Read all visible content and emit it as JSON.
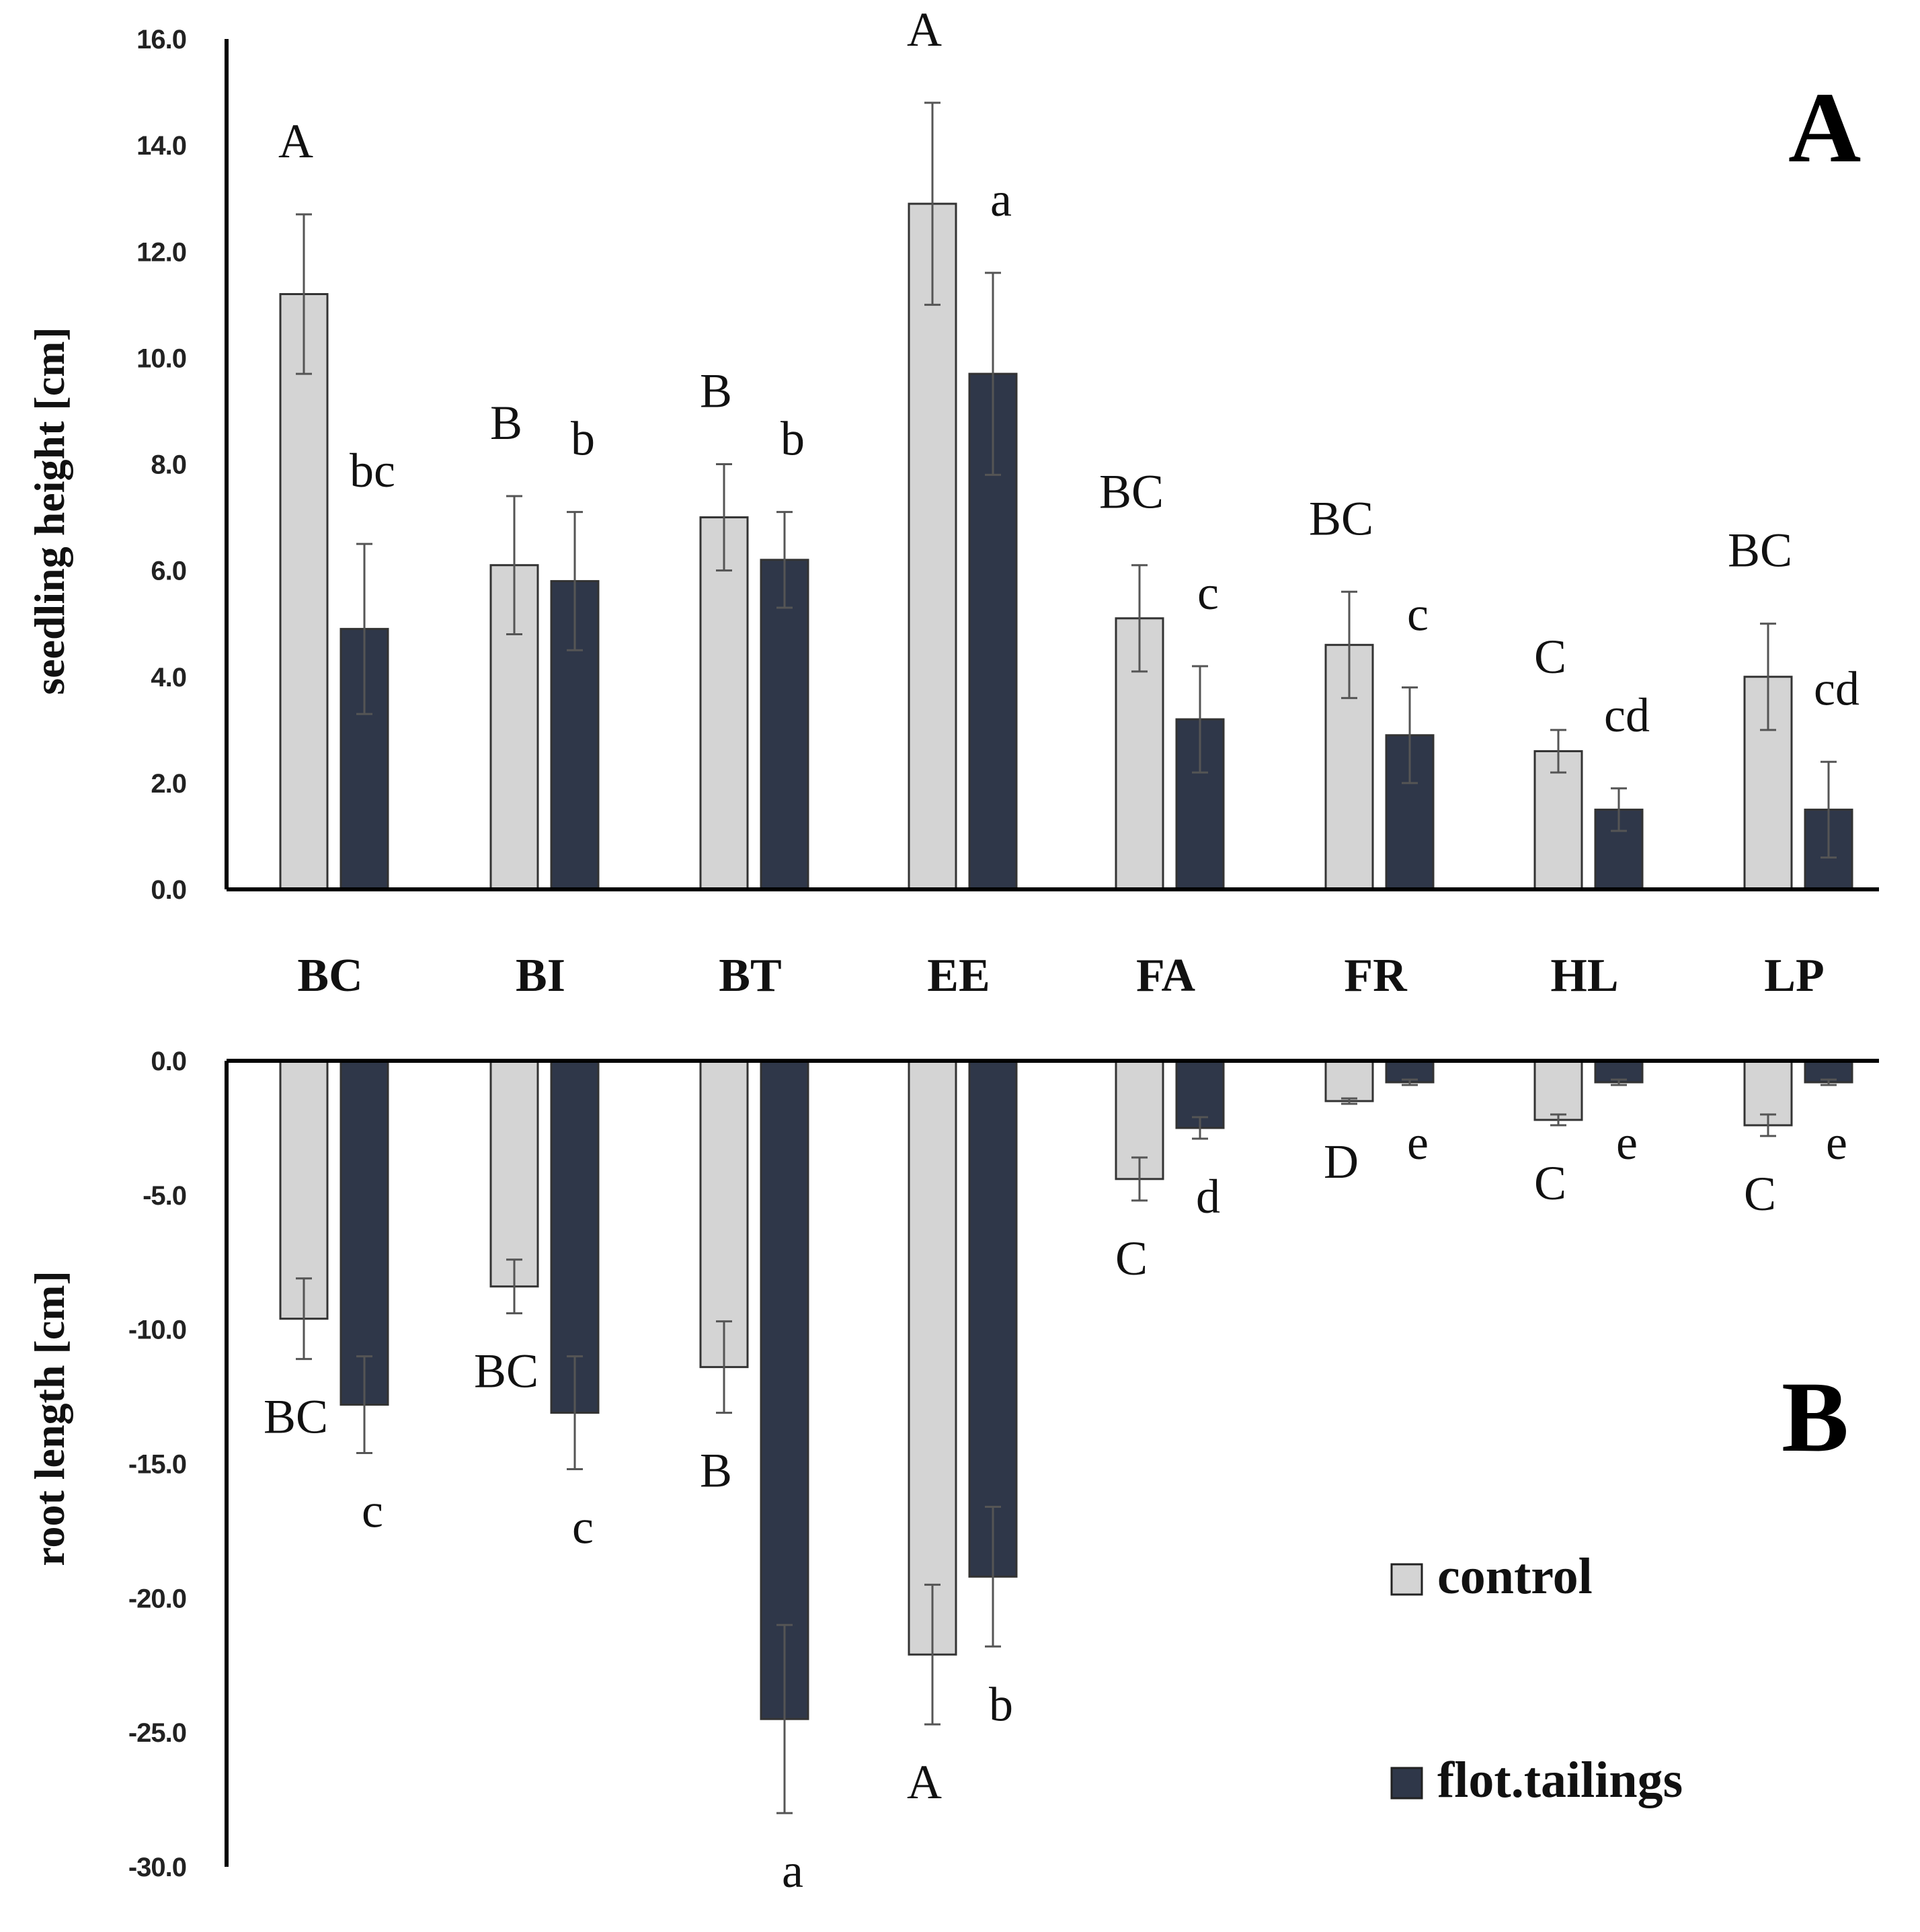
{
  "chart_data": [
    {
      "panel": "A",
      "type": "bar",
      "ylabel": "seedling height [cm]",
      "ylim": [
        0,
        16
      ],
      "yticks": [
        "0.0",
        "2.0",
        "4.0",
        "6.0",
        "8.0",
        "10.0",
        "12.0",
        "14.0",
        "16.0"
      ],
      "categories": [
        "BC",
        "BI",
        "BT",
        "EE",
        "FA",
        "FR",
        "HL",
        "LP"
      ],
      "series": [
        {
          "name": "control",
          "color": "#d4d4d4",
          "values": [
            11.2,
            6.1,
            7.0,
            12.9,
            5.1,
            4.6,
            2.6,
            4.0
          ],
          "errors": [
            1.5,
            1.3,
            1.0,
            1.9,
            1.0,
            1.0,
            0.4,
            1.0
          ],
          "letters": [
            "A",
            "B",
            "B",
            "A",
            "BC",
            "BC",
            "C",
            "BC"
          ]
        },
        {
          "name": "flot.tailings",
          "color": "#2f3749",
          "values": [
            4.9,
            5.8,
            6.2,
            9.7,
            3.2,
            2.9,
            1.5,
            1.5
          ],
          "errors": [
            1.6,
            1.3,
            0.9,
            1.9,
            1.0,
            0.9,
            0.4,
            0.9
          ],
          "letters": [
            "bc",
            "b",
            "b",
            "a",
            "c",
            "c",
            "cd",
            "cd"
          ]
        }
      ]
    },
    {
      "panel": "B",
      "type": "bar",
      "ylabel": "root length [cm]",
      "ylim": [
        -30,
        0
      ],
      "yticks": [
        "0.0",
        "-5.0",
        "-10.0",
        "-15.0",
        "-20.0",
        "-25.0",
        "-30.0"
      ],
      "categories": [
        "BC",
        "BI",
        "BT",
        "EE",
        "FA",
        "FR",
        "HL",
        "LP"
      ],
      "series": [
        {
          "name": "control",
          "color": "#d4d4d4",
          "values": [
            -9.6,
            -8.4,
            -11.4,
            -22.1,
            -4.4,
            -1.5,
            -2.2,
            -2.4
          ],
          "errors": [
            1.5,
            1.0,
            1.7,
            2.6,
            0.8,
            0.1,
            0.2,
            0.4
          ],
          "letters": [
            "BC",
            "BC",
            "B",
            "A",
            "C",
            "D",
            "C",
            "C"
          ]
        },
        {
          "name": "flot.tailings",
          "color": "#2f3749",
          "values": [
            -12.8,
            -13.1,
            -24.5,
            -19.2,
            -2.5,
            -0.8,
            -0.8,
            -0.8
          ],
          "errors": [
            1.8,
            2.1,
            3.5,
            2.6,
            0.4,
            0.1,
            0.1,
            0.1
          ],
          "letters": [
            "c",
            "c",
            "a",
            "b",
            "d",
            "e",
            "e",
            "e"
          ]
        }
      ]
    }
  ],
  "legend": {
    "control": "control",
    "flot_tailings": "flot.tailings"
  }
}
